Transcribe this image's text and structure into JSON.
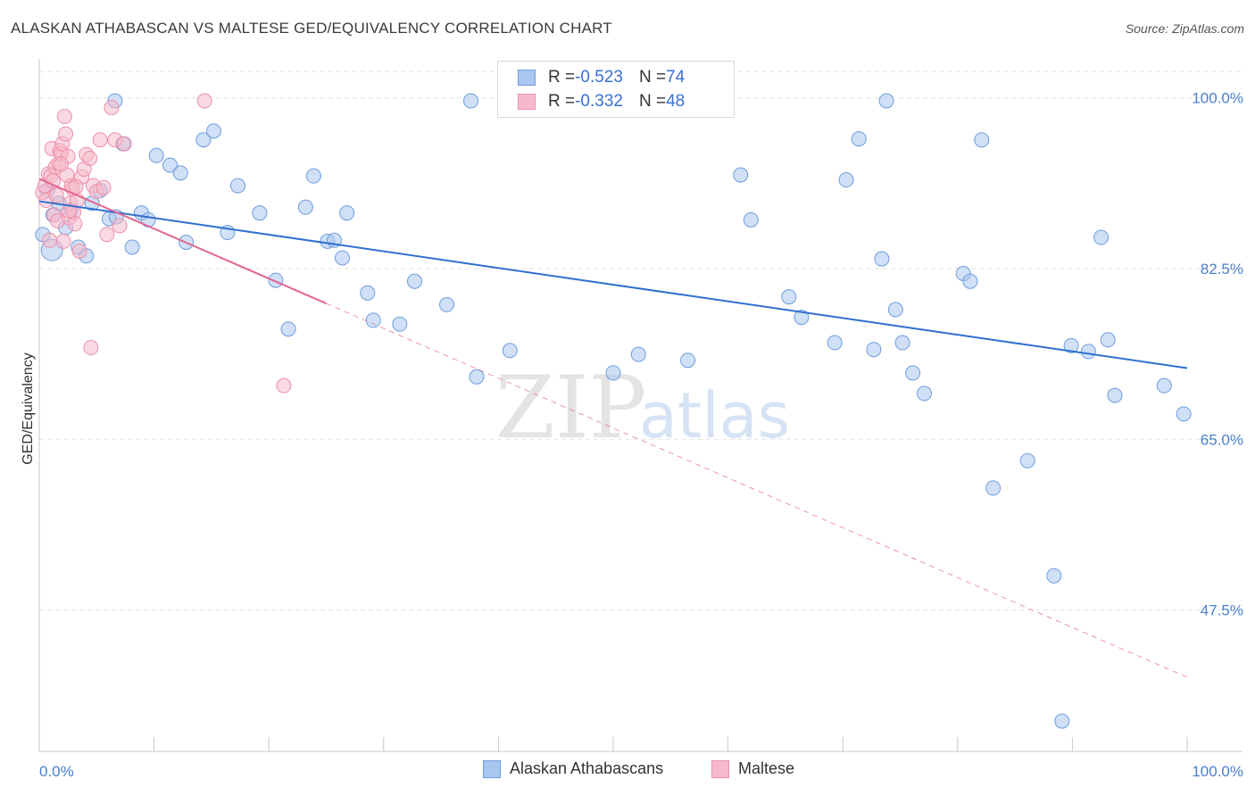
{
  "header": {
    "title": "ALASKAN ATHABASCAN VS MALTESE GED/EQUIVALENCY CORRELATION CHART",
    "source": "Source: ZipAtlas.com"
  },
  "watermark": {
    "zip": "ZIP",
    "atlas": "atlas"
  },
  "stats": {
    "blue": {
      "r_label": "R = ",
      "r_value": "-0.523",
      "n_label": "N = ",
      "n_value": "74"
    },
    "pink": {
      "r_label": "R = ",
      "r_value": "-0.332",
      "n_label": "N = ",
      "n_value": "48"
    }
  },
  "colors": {
    "blue_fill": "#a9c6ef",
    "blue_stroke": "#6f9ddd",
    "blue_line": "#2f6fd0",
    "pink_fill": "#f6b9cb",
    "pink_stroke": "#ec8fab",
    "pink_line": "#e2668f",
    "grid": "#e3e3e3",
    "tick_text": "#4a7fd0"
  },
  "chart_data": {
    "type": "scatter",
    "title": "ALASKAN ATHABASCAN VS MALTESE GED/EQUIVALENCY CORRELATION CHART",
    "xlabel": "",
    "ylabel": "GED/Equivalency",
    "xlim": [
      0,
      100
    ],
    "ylim": [
      33,
      104
    ],
    "y_ticks": [
      {
        "value": 100.0,
        "label": "100.0%"
      },
      {
        "value": 82.5,
        "label": "82.5%"
      },
      {
        "value": 65.0,
        "label": "65.0%"
      },
      {
        "value": 47.5,
        "label": "47.5%"
      }
    ],
    "x_tick_labels": {
      "left": "0.0%",
      "right": "100.0%"
    },
    "x_minor_ticks": [
      0,
      10,
      20,
      30,
      40,
      50,
      60,
      70,
      80,
      90,
      100
    ],
    "grid": true,
    "legend_position": "bottom-center",
    "series": [
      {
        "name": "Alaskan Athabascans",
        "color": "#a9c6ef",
        "trend": {
          "x": [
            0,
            100
          ],
          "y": [
            89.4,
            72.3
          ],
          "style": "solid"
        },
        "x": [
          0.3,
          0.7,
          1.2,
          1.7,
          2.3,
          2.8,
          3.4,
          4.1,
          4.6,
          5.3,
          6.1,
          6.7,
          7.3,
          8.1,
          8.9,
          9.5,
          10.2,
          11.4,
          12.3,
          12.8,
          14.3,
          15.2,
          16.4,
          17.3,
          19.2,
          20.6,
          21.7,
          23.2,
          23.9,
          25.1,
          25.7,
          26.4,
          26.8,
          28.6,
          31.4,
          32.7,
          35.5,
          37.6,
          38.1,
          41.0,
          50.0,
          52.2,
          56.5,
          61.1,
          62.0,
          65.3,
          66.4,
          69.3,
          70.3,
          71.4,
          73.4,
          74.6,
          75.2,
          76.1,
          77.1,
          80.5,
          81.1,
          82.1,
          83.1,
          86.1,
          88.4,
          89.1,
          91.4,
          93.1,
          93.7,
          98.0,
          99.7,
          29.1,
          92.5,
          73.8,
          89.9,
          72.7,
          6.6,
          1.1
        ],
        "y": [
          86.0,
          90.5,
          88.0,
          89.2,
          86.7,
          88.5,
          84.7,
          83.8,
          89.2,
          90.5,
          87.6,
          87.8,
          95.3,
          84.7,
          88.2,
          87.5,
          94.1,
          93.1,
          92.3,
          85.2,
          95.7,
          96.6,
          86.2,
          91.0,
          88.2,
          81.3,
          76.3,
          88.8,
          92.0,
          85.3,
          85.4,
          83.6,
          88.2,
          80.0,
          76.8,
          81.2,
          78.8,
          99.7,
          71.4,
          74.1,
          71.8,
          73.7,
          73.1,
          92.1,
          87.5,
          79.6,
          77.5,
          74.9,
          91.6,
          95.8,
          83.5,
          78.3,
          74.9,
          71.8,
          69.7,
          82.0,
          81.2,
          95.7,
          60.0,
          62.8,
          51.0,
          36.1,
          74.0,
          75.2,
          69.5,
          70.5,
          67.6,
          77.2,
          85.7,
          99.7,
          74.6,
          74.2,
          99.7,
          84.4
        ],
        "sizes": [
          7,
          7,
          7,
          7,
          7,
          7,
          7,
          7,
          7,
          7,
          7,
          7,
          7,
          7,
          7,
          7,
          7,
          7,
          7,
          7,
          7,
          7,
          7,
          7,
          7,
          7,
          7,
          7,
          7,
          7,
          7,
          7,
          7,
          7,
          7,
          7,
          7,
          7,
          7,
          7,
          7,
          7,
          7,
          7,
          7,
          7,
          7,
          7,
          7,
          7,
          7,
          7,
          7,
          7,
          7,
          7,
          7,
          7,
          7,
          7,
          7,
          7,
          7,
          7,
          7,
          7,
          7,
          7,
          7,
          7,
          7,
          7,
          7,
          11
        ]
      },
      {
        "name": "Maltese",
        "color": "#f6b9cb",
        "trend": {
          "x": [
            0,
            100
          ],
          "y": [
            91.7,
            40.6
          ],
          "solid_until_x": 25,
          "style": "solid-then-dashed"
        },
        "x": [
          0.3,
          0.5,
          0.6,
          0.8,
          1.0,
          1.1,
          1.3,
          1.4,
          1.5,
          1.6,
          1.7,
          1.8,
          1.9,
          2.0,
          2.1,
          2.2,
          2.3,
          2.4,
          2.5,
          2.6,
          2.7,
          2.8,
          2.9,
          3.0,
          3.1,
          3.3,
          3.5,
          3.7,
          3.9,
          4.1,
          4.4,
          4.7,
          5.0,
          5.3,
          5.6,
          5.9,
          6.3,
          6.6,
          7.0,
          7.4,
          14.4,
          21.3,
          1.2,
          1.9,
          2.6,
          3.2,
          4.5,
          0.9
        ],
        "y": [
          90.3,
          91.0,
          89.5,
          92.2,
          92.0,
          94.8,
          88.0,
          92.9,
          90.0,
          87.4,
          93.3,
          94.6,
          94.3,
          95.3,
          85.3,
          98.1,
          96.3,
          92.1,
          94.0,
          87.7,
          89.2,
          91.0,
          90.7,
          88.3,
          87.1,
          89.5,
          84.3,
          91.9,
          92.7,
          94.2,
          93.8,
          91.0,
          90.4,
          95.7,
          90.8,
          86.0,
          99.0,
          95.7,
          86.9,
          95.3,
          99.7,
          70.5,
          91.5,
          93.2,
          88.4,
          90.9,
          74.4,
          85.4
        ],
        "sizes": [
          7,
          7,
          7,
          7,
          7,
          7,
          7,
          7,
          7,
          7,
          7,
          7,
          7,
          7,
          7,
          7,
          7,
          7,
          7,
          7,
          7,
          7,
          7,
          7,
          7,
          7,
          7,
          7,
          7,
          7,
          7,
          7,
          7,
          7,
          7,
          7,
          7,
          7,
          7,
          7,
          7,
          7,
          7,
          7,
          7,
          7,
          7,
          7
        ]
      }
    ]
  }
}
